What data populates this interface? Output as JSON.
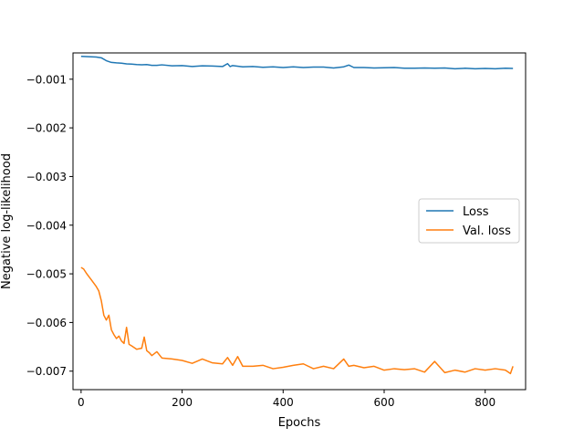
{
  "chart_data": {
    "type": "line",
    "xlabel": "Epochs",
    "ylabel": "Negative log-likelihood",
    "xlim": [
      -16,
      880
    ],
    "ylim": [
      -0.00738,
      -0.00046
    ],
    "xticks": [
      0,
      200,
      400,
      600,
      800
    ],
    "yticks": [
      -0.001,
      -0.002,
      -0.003,
      -0.004,
      -0.005,
      -0.006,
      -0.007
    ],
    "xtick_labels": [
      "0",
      "200",
      "400",
      "600",
      "800"
    ],
    "ytick_labels": [
      "−0.001",
      "−0.002",
      "−0.003",
      "−0.004",
      "−0.005",
      "−0.006",
      "−0.007"
    ],
    "grid": false,
    "legend_position": "center-right",
    "series": [
      {
        "name": "Loss",
        "color": "#1f77b4",
        "x": [
          0,
          10,
          20,
          30,
          40,
          50,
          60,
          70,
          80,
          90,
          100,
          110,
          120,
          130,
          140,
          150,
          160,
          180,
          200,
          220,
          240,
          260,
          280,
          290,
          295,
          300,
          320,
          340,
          360,
          380,
          400,
          420,
          440,
          460,
          480,
          500,
          520,
          530,
          540,
          560,
          580,
          600,
          620,
          640,
          660,
          680,
          700,
          720,
          740,
          760,
          780,
          800,
          820,
          840,
          855
        ],
        "values": [
          -0.00053,
          -0.000535,
          -0.00054,
          -0.000545,
          -0.00056,
          -0.00062,
          -0.000655,
          -0.000665,
          -0.00067,
          -0.000685,
          -0.00069,
          -0.0007,
          -0.000705,
          -0.0007,
          -0.000715,
          -0.000715,
          -0.000705,
          -0.000725,
          -0.00072,
          -0.00074,
          -0.000725,
          -0.00073,
          -0.00074,
          -0.00068,
          -0.00074,
          -0.00072,
          -0.000745,
          -0.00074,
          -0.000755,
          -0.000745,
          -0.00076,
          -0.000745,
          -0.00076,
          -0.00075,
          -0.00075,
          -0.00077,
          -0.000745,
          -0.00071,
          -0.00076,
          -0.00076,
          -0.00077,
          -0.000765,
          -0.00076,
          -0.000775,
          -0.000775,
          -0.00077,
          -0.000775,
          -0.00077,
          -0.000785,
          -0.000775,
          -0.000785,
          -0.00078,
          -0.000785,
          -0.000775,
          -0.00078
        ]
      },
      {
        "name": "Val. loss",
        "color": "#ff7f0e",
        "x": [
          0,
          5,
          10,
          15,
          20,
          25,
          30,
          35,
          40,
          45,
          50,
          55,
          60,
          65,
          70,
          75,
          80,
          85,
          90,
          95,
          100,
          110,
          120,
          125,
          130,
          135,
          140,
          150,
          160,
          180,
          200,
          220,
          240,
          260,
          280,
          290,
          300,
          310,
          320,
          340,
          360,
          380,
          400,
          420,
          440,
          460,
          480,
          500,
          520,
          530,
          540,
          560,
          580,
          600,
          620,
          640,
          660,
          680,
          700,
          720,
          740,
          760,
          780,
          800,
          820,
          840,
          850,
          855
        ],
        "values": [
          -0.00487,
          -0.0049,
          -0.00498,
          -0.00505,
          -0.00512,
          -0.00519,
          -0.00526,
          -0.00535,
          -0.00555,
          -0.00585,
          -0.00595,
          -0.00585,
          -0.00615,
          -0.00625,
          -0.00633,
          -0.00628,
          -0.00638,
          -0.00643,
          -0.0061,
          -0.00645,
          -0.00648,
          -0.00655,
          -0.00653,
          -0.0063,
          -0.00658,
          -0.00662,
          -0.00668,
          -0.0066,
          -0.00673,
          -0.00675,
          -0.00678,
          -0.00684,
          -0.00675,
          -0.00683,
          -0.00685,
          -0.00672,
          -0.00688,
          -0.0067,
          -0.0069,
          -0.0069,
          -0.00688,
          -0.00695,
          -0.00692,
          -0.00688,
          -0.00685,
          -0.00695,
          -0.0069,
          -0.00695,
          -0.00675,
          -0.0069,
          -0.00688,
          -0.00693,
          -0.0069,
          -0.00698,
          -0.00695,
          -0.00697,
          -0.00695,
          -0.00702,
          -0.0068,
          -0.00703,
          -0.00698,
          -0.00702,
          -0.00695,
          -0.00698,
          -0.00695,
          -0.00698,
          -0.00705,
          -0.0069
        ]
      }
    ]
  }
}
